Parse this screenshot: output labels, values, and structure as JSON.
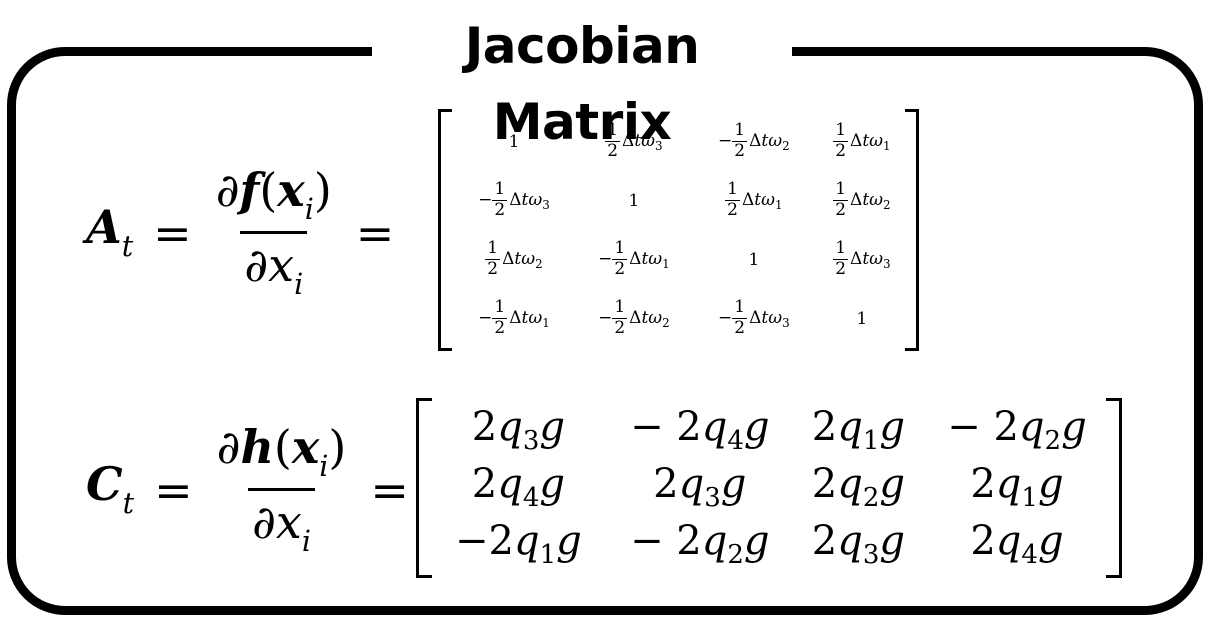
{
  "title": "Jacobian Matrix",
  "eq_a": {
    "lhs_symbol": "A",
    "lhs_subscript": "t",
    "equals": "=",
    "num_d": "∂",
    "num_func": "f",
    "num_open": "(",
    "num_arg": "x",
    "num_arg_sub": "i",
    "num_close": ")",
    "den_d": "∂",
    "den_var": "x",
    "den_sub": "i",
    "matrix": [
      [
        "1",
        "1/2 Δtω3",
        "−1/2 Δtω2",
        "1/2 Δtω1"
      ],
      [
        "−1/2 Δtω3",
        "1",
        "1/2 Δtω1",
        "1/2 Δtω2"
      ],
      [
        "1/2 Δtω2",
        "−1/2 Δtω1",
        "1",
        "1/2 Δtω3"
      ],
      [
        "−1/2 Δtω1",
        "−1/2 Δtω2",
        "−1/2 Δtω3",
        "1"
      ]
    ]
  },
  "eq_c": {
    "lhs_symbol": "C",
    "lhs_subscript": "t",
    "equals": "=",
    "num_d": "∂",
    "num_func": "h",
    "num_open": "(",
    "num_arg": "x",
    "num_arg_sub": "i",
    "num_close": ")",
    "den_d": "∂",
    "den_var": "x",
    "den_sub": "i",
    "matrix": [
      [
        "2q3g",
        "− 2q4g",
        "2q1g",
        "− 2q2g"
      ],
      [
        "2q4g",
        "2q3g",
        "2q2g",
        "2q1g"
      ],
      [
        "−2q1g",
        "− 2q2g",
        "2q3g",
        "2q4g"
      ]
    ]
  }
}
